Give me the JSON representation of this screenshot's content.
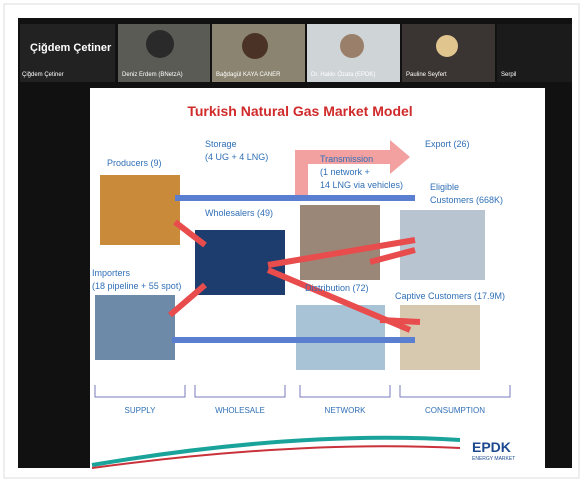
{
  "header": {
    "presenter": "Çiğdem Çetiner"
  },
  "participants": [
    "Çiğdem Çetiner",
    "Deniz Erdem (BNetzA)",
    "Bağdagül KAYA CANER",
    "Dr. Hakkı Özata (EPDK)",
    "Pauline Seyfert",
    "Serpil"
  ],
  "slide": {
    "title": "Turkish Natural Gas Market Model",
    "producers": [
      "Producers (9)"
    ],
    "storage": [
      "Storage",
      "(4 UG + 4 LNG)"
    ],
    "export": [
      "Export (26)"
    ],
    "transmission": [
      "Transmission",
      "(1 network +",
      "14 LNG via vehicles)"
    ],
    "eligible": [
      "Eligible",
      "Customers (668K)"
    ],
    "wholesalers": [
      "Wholesalers (49)"
    ],
    "importers": [
      "Importers",
      "(18 pipeline + 55 spot)"
    ],
    "distribution": [
      "Distribution (72)"
    ],
    "captive": [
      "Captive Customers (17.9M)"
    ],
    "stages": [
      "SUPPLY",
      "WHOLESALE",
      "NETWORK",
      "CONSUMPTION"
    ],
    "logo": "EPDK",
    "logo_sub": "ENERGY MARKET"
  }
}
